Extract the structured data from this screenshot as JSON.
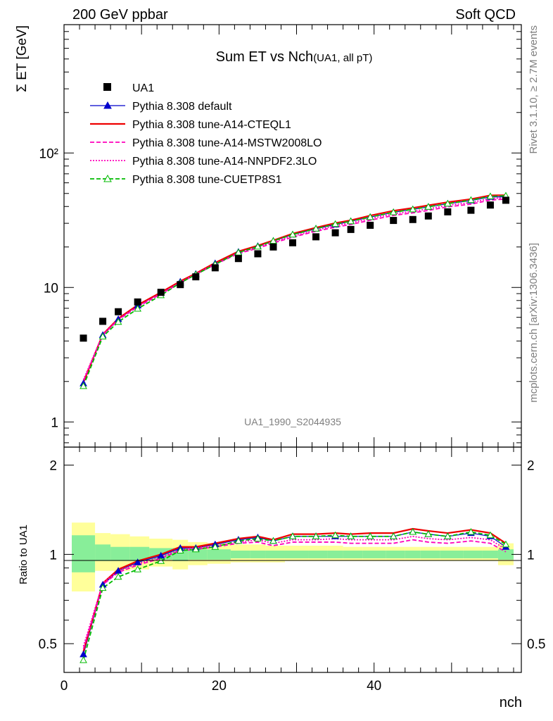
{
  "header": {
    "left": "200 GeV ppbar",
    "right": "Soft QCD"
  },
  "side": {
    "top": "Rivet 3.1.10, ≥ 2.7M events",
    "bottom": "mcplots.cern.ch [arXiv:1306.3436]"
  },
  "chart_data": {
    "type": "line",
    "title": "Sum ET vs Nch",
    "subtitle": "(UA1, all pT)",
    "watermark": "UA1_1990_S2044935",
    "xlabel": "nch",
    "ylabel": "Σ ET [GeV]",
    "ratio_ylabel": "Ratio to UA1",
    "xlim": [
      0,
      59
    ],
    "ylim": [
      0.65,
      900
    ],
    "ratio_ylim": [
      0.4,
      2.3
    ],
    "x_ticks": [
      0,
      20,
      40
    ],
    "y_ticks": [
      1,
      10,
      100
    ],
    "y_tick_labels": [
      "1",
      "10",
      "10²"
    ],
    "ratio_ticks": [
      0.5,
      1,
      2
    ],
    "ratio_tick_labels": [
      "0.5",
      "1",
      "2"
    ],
    "x": [
      2.5,
      5,
      7,
      9.5,
      12.5,
      15,
      17,
      19.5,
      22.5,
      25,
      27,
      29.5,
      32.5,
      35,
      37,
      39.5,
      42.5,
      45,
      47,
      49.5,
      52.5,
      55,
      57
    ],
    "data": {
      "name": "UA1",
      "values": [
        4.2,
        5.6,
        6.6,
        7.8,
        9.2,
        10.5,
        12.0,
        14.0,
        16.4,
        17.8,
        20.0,
        21.5,
        23.8,
        25.5,
        27.0,
        29.0,
        31.5,
        32.0,
        34.0,
        36.5,
        37.5,
        41.0,
        44.5
      ]
    },
    "series": [
      {
        "name": "Pythia 8.308 default",
        "color": "#0000cc",
        "style": "solid-triangle",
        "ratio": [
          0.46,
          0.79,
          0.88,
          0.94,
          0.99,
          1.05,
          1.05,
          1.08,
          1.12,
          1.14,
          1.11,
          1.15,
          1.15,
          1.15,
          1.15,
          1.15,
          1.15,
          1.19,
          1.17,
          1.15,
          1.18,
          1.15,
          1.06
        ]
      },
      {
        "name": "Pythia 8.308 tune-A14-CTEQL1",
        "color": "#ee0000",
        "style": "solid",
        "ratio": [
          0.47,
          0.8,
          0.89,
          0.95,
          1.0,
          1.06,
          1.06,
          1.09,
          1.13,
          1.15,
          1.12,
          1.17,
          1.17,
          1.18,
          1.17,
          1.18,
          1.18,
          1.22,
          1.2,
          1.18,
          1.21,
          1.18,
          1.09
        ]
      },
      {
        "name": "Pythia 8.308 tune-A14-MSTW2008LO",
        "color": "#ff00bb",
        "style": "dashed",
        "ratio": [
          0.48,
          0.79,
          0.87,
          0.92,
          0.97,
          1.03,
          1.04,
          1.06,
          1.09,
          1.1,
          1.07,
          1.1,
          1.1,
          1.1,
          1.09,
          1.09,
          1.09,
          1.12,
          1.1,
          1.09,
          1.11,
          1.09,
          1.02
        ]
      },
      {
        "name": "Pythia 8.308 tune-A14-NNPDF2.3LO",
        "color": "#ff00bb",
        "style": "dotted",
        "ratio": [
          0.49,
          0.8,
          0.88,
          0.93,
          0.98,
          1.04,
          1.05,
          1.07,
          1.1,
          1.12,
          1.09,
          1.12,
          1.12,
          1.13,
          1.12,
          1.12,
          1.12,
          1.15,
          1.13,
          1.12,
          1.14,
          1.12,
          1.04
        ]
      },
      {
        "name": "Pythia 8.308 tune-CUETP8S1",
        "color": "#00bb00",
        "style": "dashed-open-triangle",
        "ratio": [
          0.44,
          0.77,
          0.84,
          0.89,
          0.95,
          1.03,
          1.04,
          1.06,
          1.11,
          1.13,
          1.11,
          1.15,
          1.15,
          1.16,
          1.15,
          1.15,
          1.15,
          1.19,
          1.17,
          1.15,
          1.19,
          1.16,
          1.08
        ]
      }
    ],
    "uncertainty_bands": {
      "edges": [
        1,
        4,
        6,
        8.5,
        11,
        14,
        16,
        18.5,
        21.5,
        24,
        26,
        28.5,
        31.5,
        34,
        36,
        38.5,
        41.5,
        44,
        46,
        48.5,
        51.5,
        54,
        56,
        58
      ],
      "inner": [
        [
          0.87,
          1.16
        ],
        [
          0.95,
          1.08
        ],
        [
          0.95,
          1.06
        ],
        [
          0.95,
          1.06
        ],
        [
          0.96,
          1.05
        ],
        [
          0.95,
          1.05
        ],
        [
          0.96,
          1.04
        ],
        [
          0.96,
          1.04
        ],
        [
          0.97,
          1.03
        ],
        [
          0.97,
          1.03
        ],
        [
          0.97,
          1.03
        ],
        [
          0.97,
          1.03
        ],
        [
          0.97,
          1.03
        ],
        [
          0.97,
          1.03
        ],
        [
          0.97,
          1.03
        ],
        [
          0.97,
          1.03
        ],
        [
          0.97,
          1.03
        ],
        [
          0.97,
          1.03
        ],
        [
          0.97,
          1.03
        ],
        [
          0.97,
          1.03
        ],
        [
          0.97,
          1.03
        ],
        [
          0.97,
          1.03
        ],
        [
          0.96,
          1.04
        ]
      ],
      "outer": [
        [
          0.75,
          1.28
        ],
        [
          0.88,
          1.18
        ],
        [
          0.88,
          1.17
        ],
        [
          0.89,
          1.15
        ],
        [
          0.91,
          1.13
        ],
        [
          0.89,
          1.12
        ],
        [
          0.92,
          1.1
        ],
        [
          0.93,
          1.09
        ],
        [
          0.94,
          1.08
        ],
        [
          0.94,
          1.08
        ],
        [
          0.94,
          1.07
        ],
        [
          0.95,
          1.07
        ],
        [
          0.95,
          1.07
        ],
        [
          0.95,
          1.07
        ],
        [
          0.95,
          1.06
        ],
        [
          0.95,
          1.06
        ],
        [
          0.95,
          1.06
        ],
        [
          0.95,
          1.06
        ],
        [
          0.95,
          1.06
        ],
        [
          0.95,
          1.06
        ],
        [
          0.95,
          1.06
        ],
        [
          0.95,
          1.06
        ],
        [
          0.92,
          1.09
        ]
      ]
    }
  }
}
